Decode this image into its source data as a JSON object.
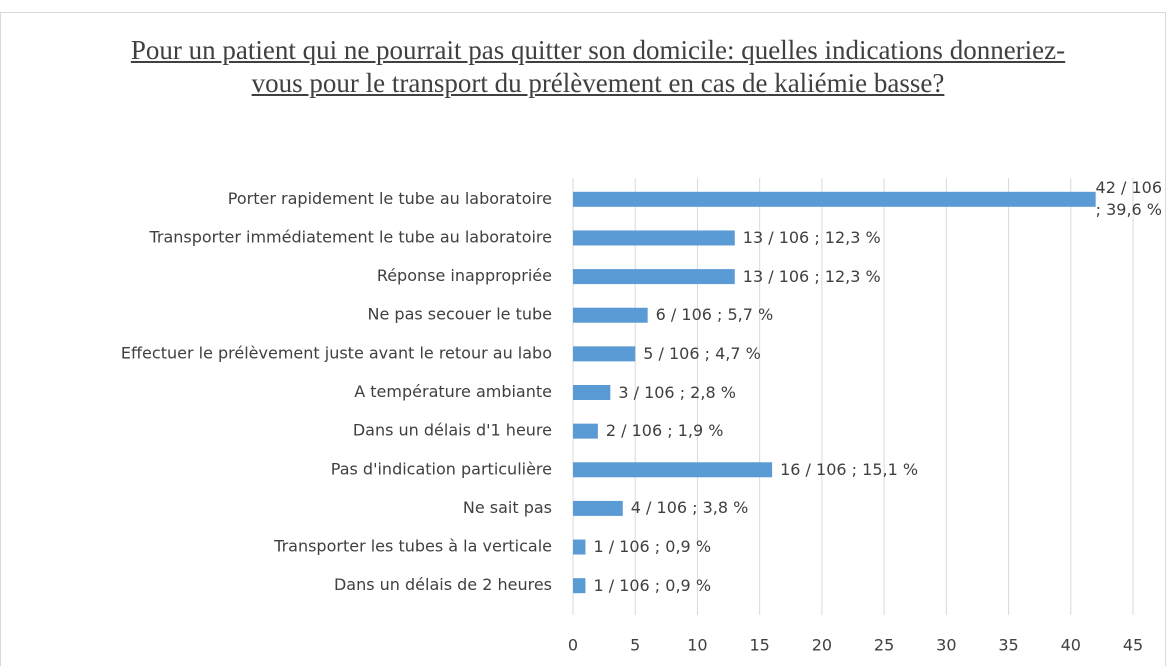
{
  "chart_data": {
    "type": "bar",
    "orientation": "horizontal",
    "title": "Pour un patient qui ne pourrait pas quitter son domicile: quelles indications donneriez-vous pour le transport du prélèvement en cas de kaliémie basse?",
    "categories": [
      "Porter rapidement le tube au laboratoire",
      "Transporter immédiatement le tube au laboratoire",
      "Réponse inappropriée",
      "Ne pas secouer le tube",
      "Effectuer le prélèvement juste avant le retour au labo",
      "A température ambiante",
      "Dans un délais d'1 heure",
      "Pas d'indication particulière",
      "Ne sait pas",
      "Transporter les tubes à la verticale",
      "Dans un délais de 2 heures"
    ],
    "values": [
      42,
      13,
      13,
      6,
      5,
      3,
      2,
      16,
      4,
      1,
      1
    ],
    "value_labels": [
      "42 / 106 ; 39,6 %",
      "13 / 106 ; 12,3 %",
      "13 / 106 ; 12,3 %",
      "6 / 106 ;  5,7 %",
      "5 / 106 ; 4,7 %",
      "3 / 106 ;  2,8 %",
      "2 / 106 ;  1,9 %",
      "16 / 106 ; 15,1 %",
      "4 / 106 ; 3,8 %",
      "1 / 106 ; 0,9 %",
      "1 / 106 ; 0,9 %"
    ],
    "color": "#5b9bd5",
    "xlim": [
      0,
      45
    ],
    "xticks": [
      0,
      5,
      10,
      15,
      20,
      25,
      30,
      35,
      40,
      45
    ],
    "grid": true
  }
}
